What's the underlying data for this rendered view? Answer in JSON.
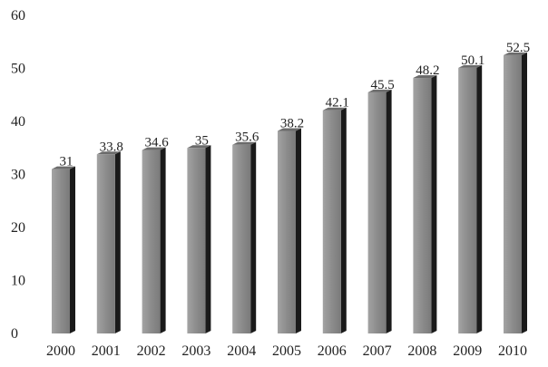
{
  "chart_data": {
    "type": "bar",
    "title": "",
    "xlabel": "",
    "ylabel": "",
    "categories": [
      "2000",
      "2001",
      "2002",
      "2003",
      "2004",
      "2005",
      "2006",
      "2007",
      "2008",
      "2009",
      "2010"
    ],
    "values": [
      31,
      33.8,
      34.6,
      35,
      35.6,
      38.2,
      42.1,
      45.5,
      48.2,
      50.1,
      52.5
    ],
    "data_labels": [
      "31",
      "33.8",
      "34.6",
      "35",
      "35.6",
      "38.2",
      "42.1",
      "45.5",
      "48.2",
      "50.1",
      "52.5"
    ],
    "ylim": [
      0,
      60
    ],
    "yticks": [
      0,
      10,
      20,
      30,
      40,
      50,
      60
    ],
    "grid": false,
    "legend": "none",
    "bar_style": "3d",
    "colors": {
      "bar_face": "#8f8f8f",
      "bar_side": "#1a1a1a",
      "bar_top": "#6b6b6b",
      "text": "#222222"
    }
  }
}
